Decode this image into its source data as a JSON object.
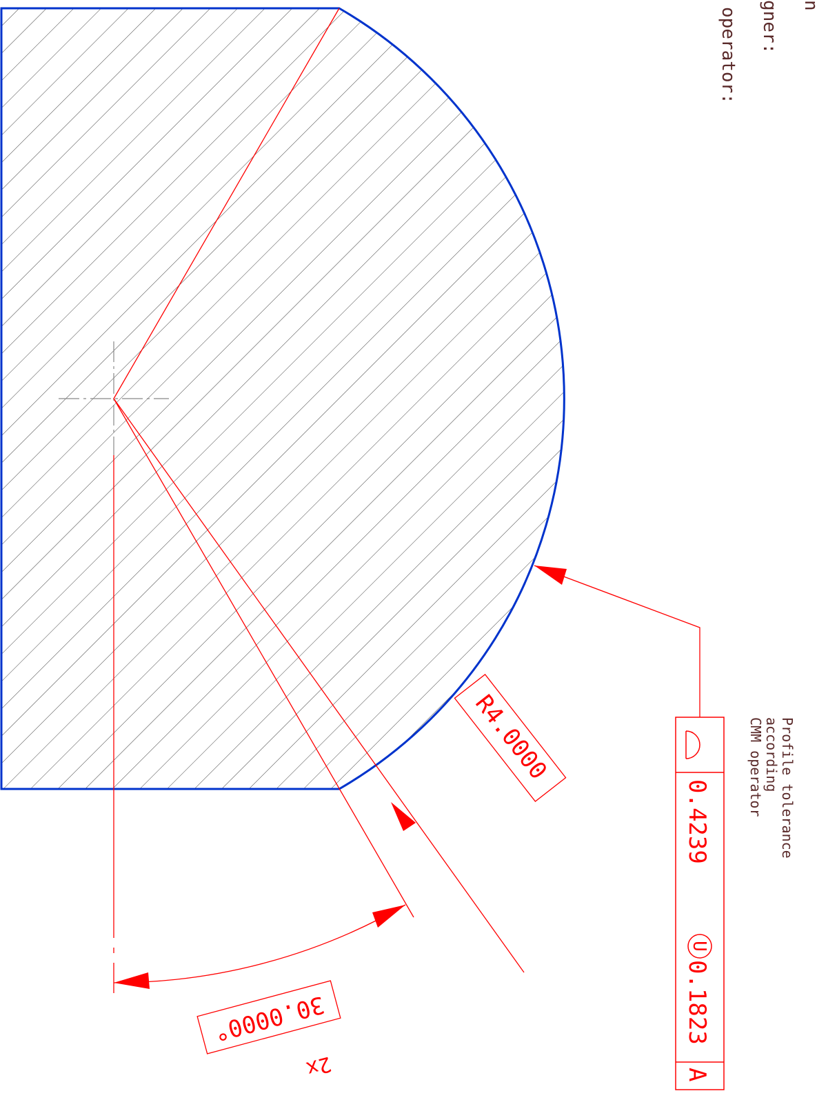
{
  "header": {
    "lines": [
      "n",
      "gner:",
      "operator:"
    ]
  },
  "callout": {
    "note": [
      "Profile tolerance",
      "according",
      "CMM operator"
    ],
    "frame": {
      "tolerance": "0.4239",
      "modifier": "U",
      "offset": "0.1823",
      "datum": "A"
    }
  },
  "dimensions": {
    "radius": "R4.0000",
    "angle": "30.0000°",
    "count": "2x"
  }
}
